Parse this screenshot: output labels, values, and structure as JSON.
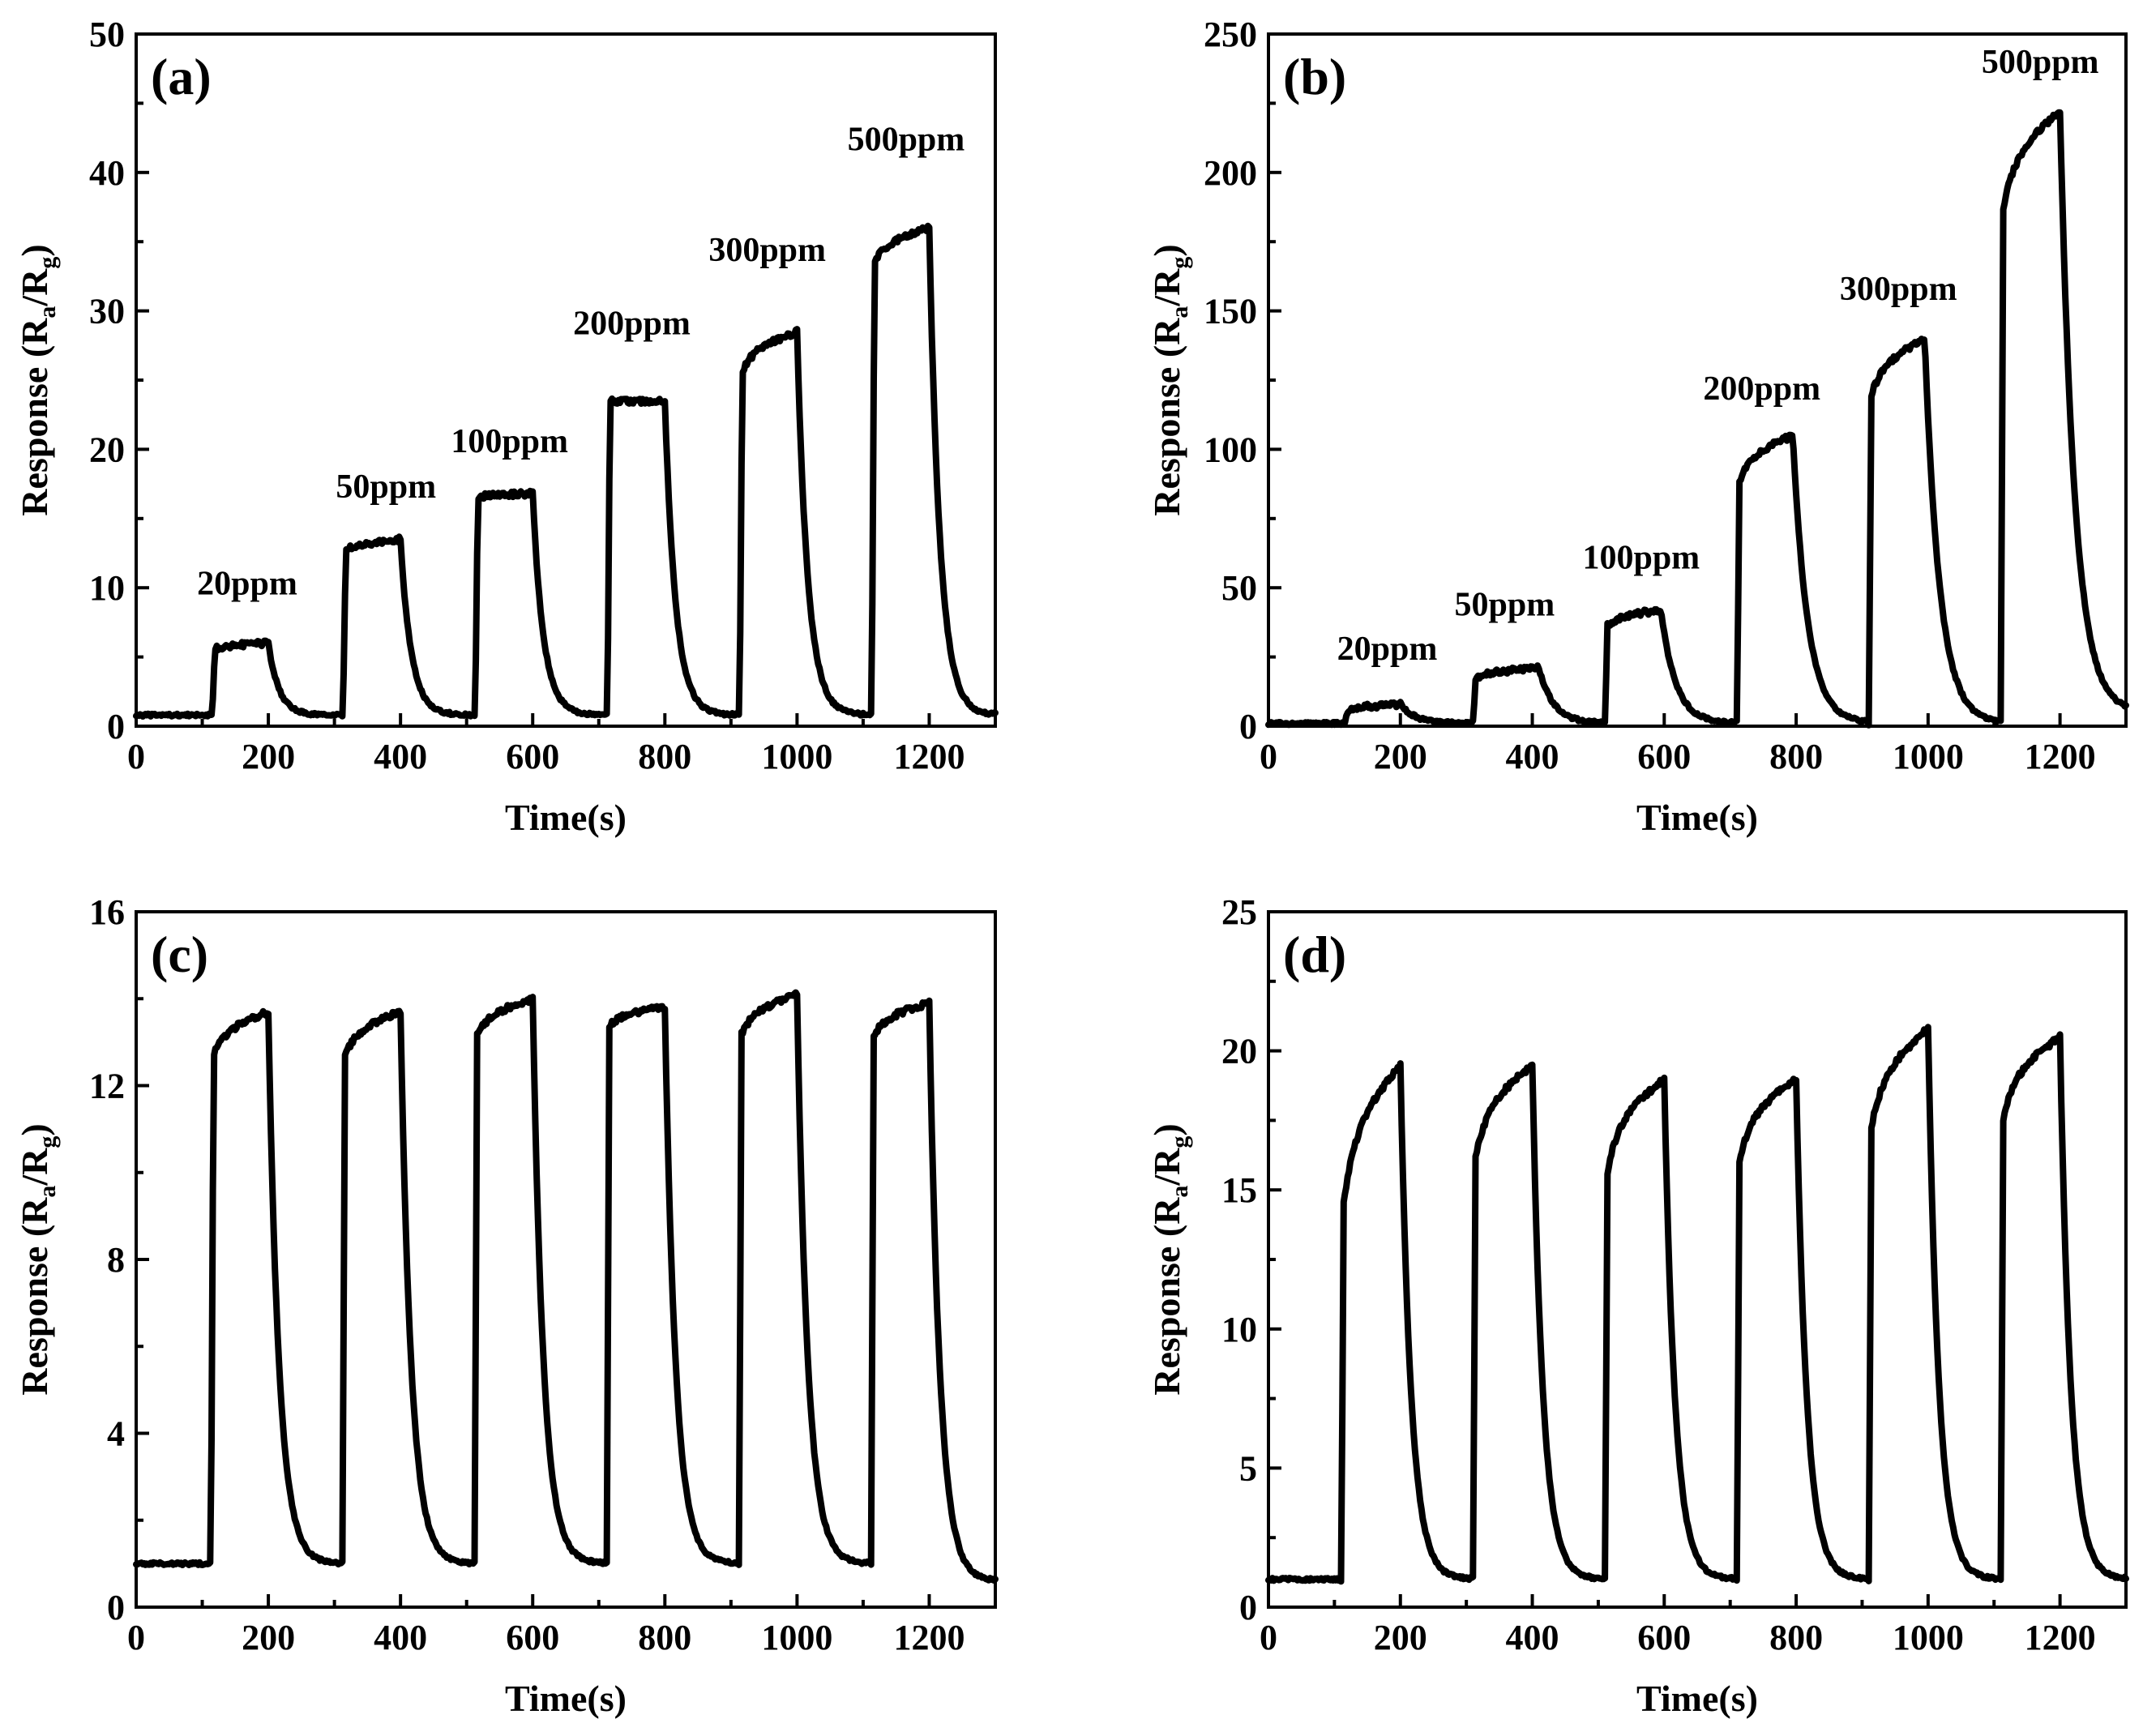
{
  "chart_data": [
    {
      "type": "line",
      "panel_label": "(a)",
      "xlabel": "Time(s)",
      "ylabel": "Response (R_a/R_g)",
      "xlim": [
        0,
        1300
      ],
      "ylim": [
        0,
        50
      ],
      "xticks": [
        0,
        200,
        400,
        600,
        800,
        1000,
        1200
      ],
      "xtick_labels": [
        "0",
        "200",
        "400",
        "600",
        "800",
        "1000",
        "1200"
      ],
      "yticks": [
        0,
        10,
        20,
        30,
        40,
        50
      ],
      "ytick_labels": [
        "0",
        "10",
        "20",
        "30",
        "40",
        "50"
      ],
      "baseline": 0.8,
      "pulses": [
        {
          "on": 115,
          "off": 200,
          "start": 5.5,
          "peak": 6.0,
          "label": "20ppm",
          "lx": 168,
          "ly": 9.5
        },
        {
          "on": 313,
          "off": 400,
          "start": 12.5,
          "peak": 13.5,
          "label": "50ppm",
          "lx": 378,
          "ly": 16.5
        },
        {
          "on": 513,
          "off": 600,
          "start": 16.5,
          "peak": 16.8,
          "label": "100ppm",
          "lx": 565,
          "ly": 19.8
        },
        {
          "on": 713,
          "off": 800,
          "start": 23.5,
          "peak": 23.5,
          "label": "200ppm",
          "lx": 750,
          "ly": 28.3
        },
        {
          "on": 913,
          "off": 1000,
          "start": 25.0,
          "peak": 28.5,
          "label": "300ppm",
          "lx": 955,
          "ly": 33.6
        },
        {
          "on": 1113,
          "off": 1200,
          "start": 33.0,
          "peak": 36.0,
          "label": "500ppm",
          "lx": 1165,
          "ly": 41.6
        }
      ],
      "tail": 0.8
    },
    {
      "type": "line",
      "panel_label": "(b)",
      "xlabel": "Time(s)",
      "ylabel": "Response (R_a/R_g)",
      "xlim": [
        0,
        1300
      ],
      "ylim": [
        0,
        250
      ],
      "xticks": [
        0,
        200,
        400,
        600,
        800,
        1000,
        1200
      ],
      "xtick_labels": [
        "0",
        "200",
        "400",
        "600",
        "800",
        "1000",
        "1200"
      ],
      "yticks": [
        0,
        50,
        100,
        150,
        200,
        250
      ],
      "ytick_labels": [
        "0",
        "50",
        "100",
        "150",
        "200",
        "250"
      ],
      "baseline": 1.0,
      "pulses": [
        {
          "on": 115,
          "off": 200,
          "start": 5.0,
          "peak": 8.0,
          "label": "20ppm",
          "lx": 180,
          "ly": 24
        },
        {
          "on": 310,
          "off": 410,
          "start": 17.0,
          "peak": 21.0,
          "label": "50ppm",
          "lx": 358,
          "ly": 40
        },
        {
          "on": 510,
          "off": 595,
          "start": 35.0,
          "peak": 42.0,
          "label": "100ppm",
          "lx": 565,
          "ly": 57
        },
        {
          "on": 710,
          "off": 795,
          "start": 85.0,
          "peak": 105.0,
          "label": "200ppm",
          "lx": 748,
          "ly": 118
        },
        {
          "on": 910,
          "off": 995,
          "start": 115.0,
          "peak": 140.0,
          "label": "300ppm",
          "lx": 955,
          "ly": 154
        },
        {
          "on": 1110,
          "off": 1200,
          "start": 180.0,
          "peak": 222.0,
          "label": "500ppm",
          "lx": 1170,
          "ly": 236
        }
      ],
      "tail": 5.0
    },
    {
      "type": "line",
      "panel_label": "(c)",
      "xlabel": "Time(s)",
      "ylabel": "Response (R_a/R_g)",
      "xlim": [
        0,
        1300
      ],
      "ylim": [
        0,
        16
      ],
      "xticks": [
        0,
        200,
        400,
        600,
        800,
        1000,
        1200
      ],
      "xtick_labels": [
        "0",
        "200",
        "400",
        "600",
        "800",
        "1000",
        "1200"
      ],
      "yticks": [
        0,
        4,
        8,
        12,
        16
      ],
      "ytick_labels": [
        "0",
        "4",
        "8",
        "12",
        "16"
      ],
      "baseline": 1.0,
      "pulses": [
        {
          "on": 113,
          "off": 200,
          "start": 12.5,
          "peak": 13.7
        },
        {
          "on": 312,
          "off": 400,
          "start": 12.5,
          "peak": 13.7
        },
        {
          "on": 512,
          "off": 600,
          "start": 13.0,
          "peak": 14.0
        },
        {
          "on": 712,
          "off": 800,
          "start": 13.3,
          "peak": 13.8
        },
        {
          "on": 912,
          "off": 1000,
          "start": 13.0,
          "peak": 14.1
        },
        {
          "on": 1112,
          "off": 1200,
          "start": 13.0,
          "peak": 13.9
        }
      ],
      "tail": 0.6
    },
    {
      "type": "line",
      "panel_label": "(d)",
      "xlabel": "Time(s)",
      "ylabel": "Response (R_a/R_g)",
      "xlim": [
        0,
        1300
      ],
      "ylim": [
        0,
        25
      ],
      "xticks": [
        0,
        200,
        400,
        600,
        800,
        1000,
        1200
      ],
      "xtick_labels": [
        "0",
        "200",
        "400",
        "600",
        "800",
        "1000",
        "1200"
      ],
      "yticks": [
        0,
        5,
        10,
        15,
        20,
        25
      ],
      "ytick_labels": [
        "0",
        "5",
        "10",
        "15",
        "20",
        "25"
      ],
      "baseline": 1.0,
      "pulses": [
        {
          "on": 110,
          "off": 200,
          "start": 13.5,
          "peak": 19.5
        },
        {
          "on": 310,
          "off": 400,
          "start": 15.5,
          "peak": 19.5
        },
        {
          "on": 510,
          "off": 600,
          "start": 15.0,
          "peak": 19.0
        },
        {
          "on": 710,
          "off": 800,
          "start": 15.5,
          "peak": 19.0
        },
        {
          "on": 910,
          "off": 1000,
          "start": 16.5,
          "peak": 20.8
        },
        {
          "on": 1110,
          "off": 1200,
          "start": 17.0,
          "peak": 20.5
        }
      ],
      "tail": 1.0
    }
  ]
}
